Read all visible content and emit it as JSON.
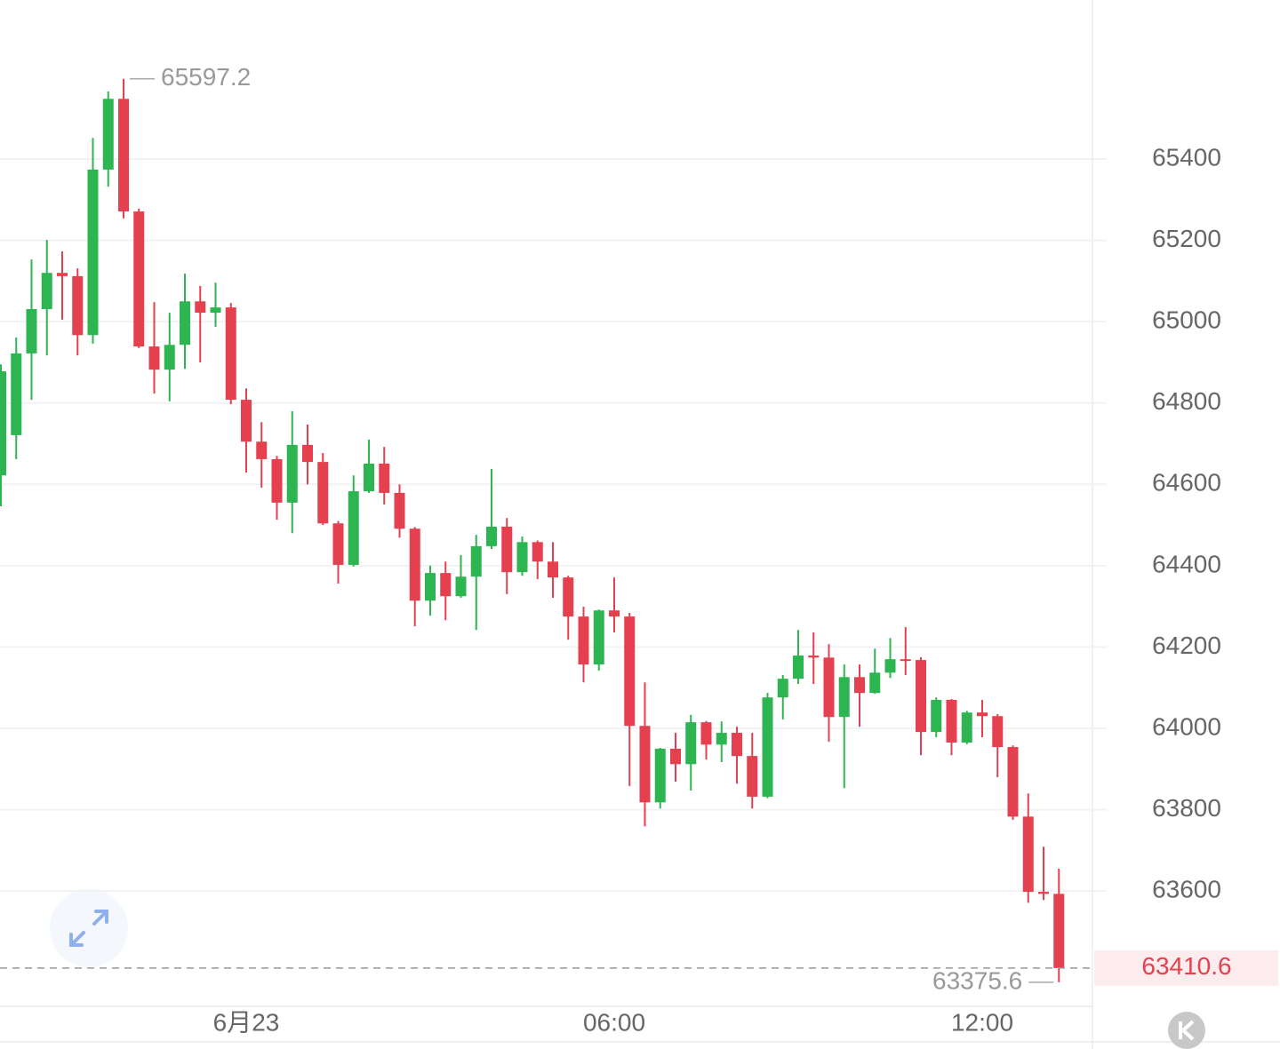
{
  "chart_data": {
    "type": "candlestick",
    "categories": [
      null,
      null,
      null,
      null,
      null,
      null,
      null,
      null,
      null,
      null,
      null,
      null,
      null,
      null,
      null,
      null,
      "6月23",
      null,
      null,
      null,
      null,
      null,
      null,
      null,
      null,
      null,
      null,
      null,
      null,
      null,
      null,
      null,
      null,
      null,
      null,
      null,
      null,
      null,
      null,
      null,
      "06:00",
      null,
      null,
      null,
      null,
      null,
      null,
      null,
      null,
      null,
      null,
      null,
      null,
      null,
      null,
      null,
      null,
      null,
      null,
      null,
      null,
      null,
      null,
      null,
      "12:00",
      null,
      null,
      null,
      null,
      null
    ],
    "open": [
      64622,
      64721,
      64922,
      65031,
      65120,
      65112,
      64967,
      65374,
      65548,
      65271,
      64939,
      64882,
      64943,
      65050,
      65022,
      65035,
      64808,
      64705,
      64662,
      64555,
      64697,
      64655,
      64504,
      64402,
      64583,
      64651,
      64579,
      64491,
      64314,
      64382,
      64325,
      64373,
      64448,
      64496,
      64384,
      64458,
      64410,
      64371,
      64275,
      64157,
      64290,
      64275,
      64006,
      63818,
      63950,
      63912,
      64015,
      63960,
      63989,
      63932,
      63832,
      64076,
      64122,
      64179,
      64174,
      64028,
      64126,
      64087,
      64137,
      64170,
      64168,
      63991,
      64070,
      63965,
      64039,
      64030,
      63954,
      63783,
      63598,
      63593
    ],
    "high": [
      64895,
      64961,
      65153,
      65201,
      65173,
      65131,
      65452,
      65566,
      65597.2,
      65278,
      65048,
      65022,
      65118,
      65088,
      65096,
      65046,
      64836,
      64753,
      64670,
      64780,
      64747,
      64677,
      64510,
      64622,
      64710,
      64692,
      64600,
      64495,
      64400,
      64410,
      64426,
      64476,
      64638,
      64517,
      64472,
      64462,
      64458,
      64375,
      64299,
      64292,
      64371,
      64284,
      64113,
      63952,
      63989,
      64033,
      64018,
      64017,
      64004,
      63989,
      64087,
      64131,
      64242,
      64236,
      64207,
      64157,
      64157,
      64196,
      64222,
      64249,
      64175,
      64076,
      64072,
      64043,
      64070,
      64035,
      63958,
      63840,
      63709,
      63655
    ],
    "low": [
      64546,
      64662,
      64808,
      64917,
      65005,
      64917,
      64946,
      65332,
      65254,
      64935,
      64823,
      64804,
      64884,
      64900,
      64987,
      64797,
      64629,
      64592,
      64513,
      64480,
      64600,
      64500,
      64356,
      64398,
      64579,
      64550,
      64469,
      64251,
      64277,
      64266,
      64321,
      64242,
      64441,
      64330,
      64375,
      64367,
      64321,
      64218,
      64113,
      64142,
      64236,
      63858,
      63759,
      63803,
      63869,
      63847,
      63923,
      63917,
      63864,
      63803,
      63828,
      64022,
      64109,
      64109,
      63967,
      63853,
      64004,
      64085,
      64124,
      64131,
      63934,
      63978,
      63934,
      63961,
      63978,
      63880,
      63775,
      63571,
      63578,
      63375.6
    ],
    "close": [
      64878,
      64922,
      65031,
      65120,
      65112,
      64967,
      65374,
      65548,
      65271,
      64939,
      64882,
      64943,
      65050,
      65022,
      65035,
      64808,
      64705,
      64662,
      64555,
      64697,
      64655,
      64504,
      64402,
      64583,
      64651,
      64579,
      64491,
      64314,
      64382,
      64325,
      64373,
      64448,
      64496,
      64384,
      64458,
      64410,
      64371,
      64275,
      64157,
      64290,
      64275,
      64006,
      63818,
      63950,
      63912,
      64015,
      63960,
      63989,
      63932,
      63832,
      64076,
      64122,
      64179,
      64174,
      64028,
      64126,
      64087,
      64137,
      64170,
      64168,
      63991,
      64070,
      63965,
      64039,
      64030,
      63954,
      63783,
      63598,
      63593,
      63410.6
    ],
    "up_color": "#2db552",
    "down_color": "#e5404f",
    "ylim": [
      63312,
      65791
    ],
    "yticks": [
      63600,
      63800,
      64000,
      64200,
      64400,
      64600,
      64800,
      65000,
      65200,
      65400
    ],
    "grid": true
  }
}
